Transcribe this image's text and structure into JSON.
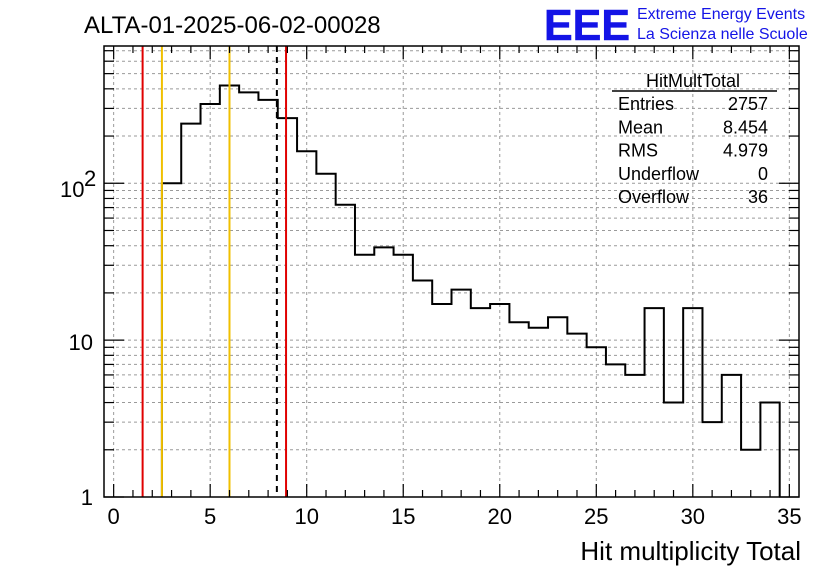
{
  "plot_title": "ALTA-01-2025-06-02-00028",
  "logo": {
    "letters": "EEE",
    "line1": "Extreme Energy Events",
    "line2": "La Scienza nelle Scuole",
    "color": "#1414e6"
  },
  "stats": {
    "name": "HitMultTotal",
    "rows": [
      {
        "label": "Entries",
        "value": "2757"
      },
      {
        "label": "Mean",
        "value": "8.454"
      },
      {
        "label": "RMS",
        "value": "4.979"
      },
      {
        "label": "Underflow",
        "value": "0"
      },
      {
        "label": "Overflow",
        "value": "36"
      }
    ]
  },
  "chart_data": {
    "type": "histogram",
    "title": "ALTA-01-2025-06-02-00028",
    "xlabel": "Hit multiplicity Total",
    "ylabel": "",
    "x_scale": "linear",
    "y_scale": "log",
    "xlim": [
      -0.5,
      35.5
    ],
    "ylim": [
      1,
      750
    ],
    "grid": true,
    "x_ticks": [
      "0",
      "5",
      "10",
      "15",
      "20",
      "25",
      "30",
      "35"
    ],
    "y_ticks": [
      "1",
      "10",
      "10^2"
    ],
    "bin_edges": [
      2.5,
      3.5,
      4.5,
      5.5,
      6.5,
      7.5,
      8.5,
      9.5,
      10.5,
      11.5,
      12.5,
      13.5,
      14.5,
      15.5,
      16.5,
      17.5,
      18.5,
      19.5,
      20.5,
      21.5,
      22.5,
      23.5,
      24.5,
      25.5,
      26.5,
      27.5,
      28.5,
      29.5,
      30.5,
      31.5,
      32.5,
      33.5,
      34.5
    ],
    "counts": [
      100,
      240,
      320,
      420,
      380,
      340,
      260,
      160,
      115,
      73,
      35,
      39,
      35,
      24,
      17,
      21,
      16,
      17,
      13,
      12,
      14,
      11,
      9,
      7,
      6,
      16,
      4,
      16,
      3,
      6,
      2,
      4
    ],
    "vertical_lines": [
      {
        "x": 1.5,
        "color": "#e00000",
        "style": "solid"
      },
      {
        "x": 2.5,
        "color": "#f0c000",
        "style": "solid"
      },
      {
        "x": 6.0,
        "color": "#f0c000",
        "style": "solid"
      },
      {
        "x": 8.454,
        "color": "#000000",
        "style": "dashed"
      },
      {
        "x": 8.93,
        "color": "#e00000",
        "style": "solid"
      }
    ]
  }
}
